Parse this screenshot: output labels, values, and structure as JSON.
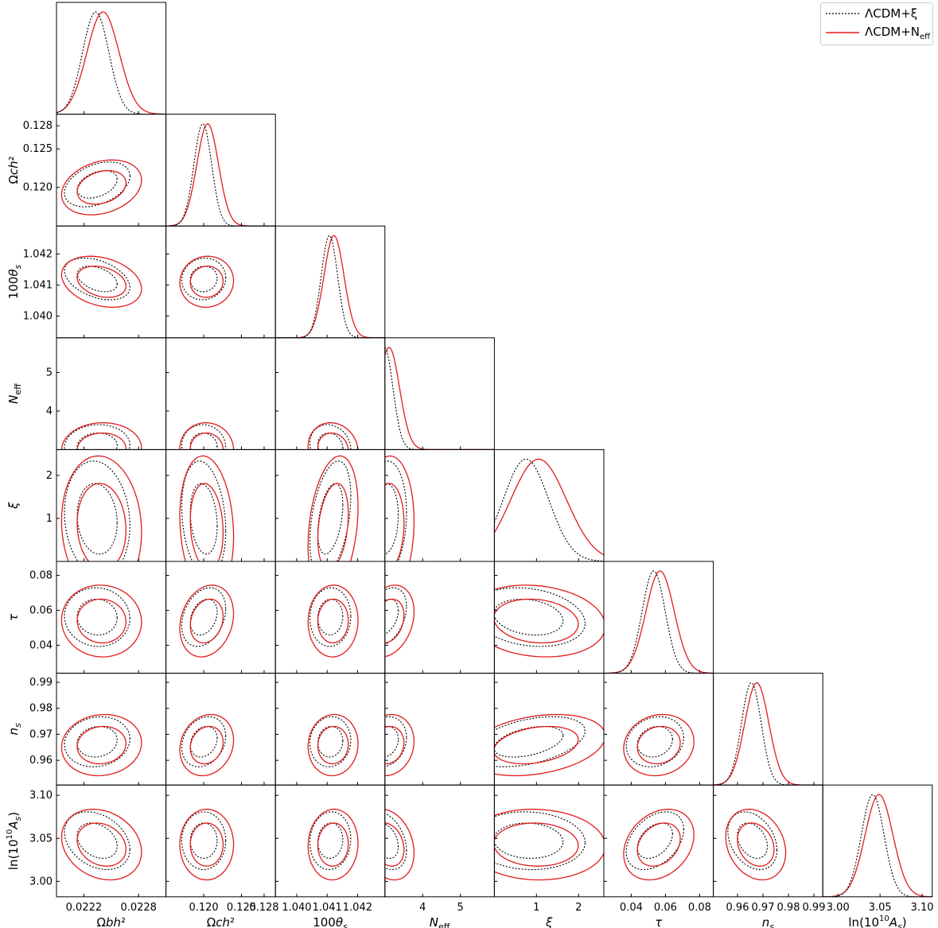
{
  "chart_data": {
    "type": "corner-plot",
    "parameters": [
      {
        "key": "obh2",
        "label_html": "Ω<tspan font-style='italic'>b</tspan><tspan font-style='italic'>h</tspan>²",
        "text": "Ωbh2",
        "range": [
          0.0219,
          0.0231
        ],
        "ticks": [
          0.0222,
          0.0228
        ],
        "tick_labels": [
          "0.0222",
          "0.0228"
        ],
        "mean": 0.02237,
        "sigma": 0.00016
      },
      {
        "key": "och2",
        "label_html": "Ω<tspan font-style='italic'>c</tspan><tspan font-style='italic'>h</tspan>²",
        "text": "Ωch2",
        "range": [
          0.115,
          0.1295
        ],
        "ticks": [
          0.12,
          0.125,
          0.128
        ],
        "tick_labels": [
          "0.120",
          "0.125",
          "0.128"
        ],
        "mean": 0.1202,
        "sigma": 0.0013
      },
      {
        "key": "theta",
        "label_html": "100<tspan font-style='italic'>θ</tspan><tspan font-size='11' dy='4' font-style='italic'>s</tspan>",
        "text": "100θs",
        "range": [
          1.0393,
          1.0429
        ],
        "ticks": [
          1.04,
          1.041,
          1.042
        ],
        "tick_labels": [
          "1.040",
          "1.041",
          "1.042"
        ],
        "mean": 1.04115,
        "sigma": 0.0003
      },
      {
        "key": "neff",
        "label_html": "<tspan font-style='italic'>N</tspan><tspan font-size='11' dy='4'>eff</tspan>",
        "text": "Neff",
        "range": [
          3.0,
          5.9
        ],
        "ticks": [
          4,
          5
        ],
        "tick_labels": [
          "4",
          "5"
        ],
        "mean": 3.05,
        "sigma": 0.25
      },
      {
        "key": "xi",
        "label_html": "<tspan font-style='italic'>ξ</tspan>",
        "text": "ξ",
        "range": [
          0.0,
          2.6
        ],
        "ticks": [
          1,
          2
        ],
        "tick_labels": [
          "1",
          "2"
        ],
        "mean": 0.9,
        "sigma": 0.6
      },
      {
        "key": "tau",
        "label_html": "<tspan font-style='italic'>τ</tspan>",
        "text": "τ",
        "range": [
          0.024,
          0.088
        ],
        "ticks": [
          0.04,
          0.06,
          0.08
        ],
        "tick_labels": [
          "0.04",
          "0.06",
          "0.08"
        ],
        "mean": 0.055,
        "sigma": 0.0075
      },
      {
        "key": "ns",
        "label_html": "<tspan font-style='italic'>n</tspan><tspan font-size='11' dy='4' font-style='italic'>s</tspan>",
        "text": "ns",
        "range": [
          0.9505,
          0.9935
        ],
        "ticks": [
          0.96,
          0.97,
          0.98,
          0.99
        ],
        "tick_labels": [
          "0.96",
          "0.97",
          "0.98",
          "0.99"
        ],
        "mean": 0.9665,
        "sigma": 0.0043
      },
      {
        "key": "as",
        "label_html": "ln(10<tspan font-size='10' dy='-7'>10</tspan><tspan dy='7'><tspan font-style='italic'>A</tspan></tspan><tspan font-size='11' dy='4' font-style='italic'>s</tspan><tspan dy='-4'>)</tspan>",
        "text": "ln(10^10As)",
        "range": [
          2.982,
          3.112
        ],
        "ticks": [
          3.0,
          3.05,
          3.1
        ],
        "tick_labels": [
          "3.00",
          "3.05",
          "3.10"
        ],
        "mean": 3.045,
        "sigma": 0.015
      }
    ],
    "series": [
      {
        "name": "ΛCDM+ξ",
        "color": "#000000",
        "dash": "dotted"
      },
      {
        "name": "ΛCDM+N_eff",
        "color": "#e31a1c",
        "dash": "solid"
      }
    ],
    "legend_position": "top-right"
  },
  "legend": {
    "items": [
      {
        "label": "ΛCDM+ξ",
        "color": "#000000",
        "dash": "2,2"
      },
      {
        "label": "ΛCDM+N",
        "sub": "eff",
        "color": "#e31a1c",
        "dash": ""
      }
    ]
  }
}
